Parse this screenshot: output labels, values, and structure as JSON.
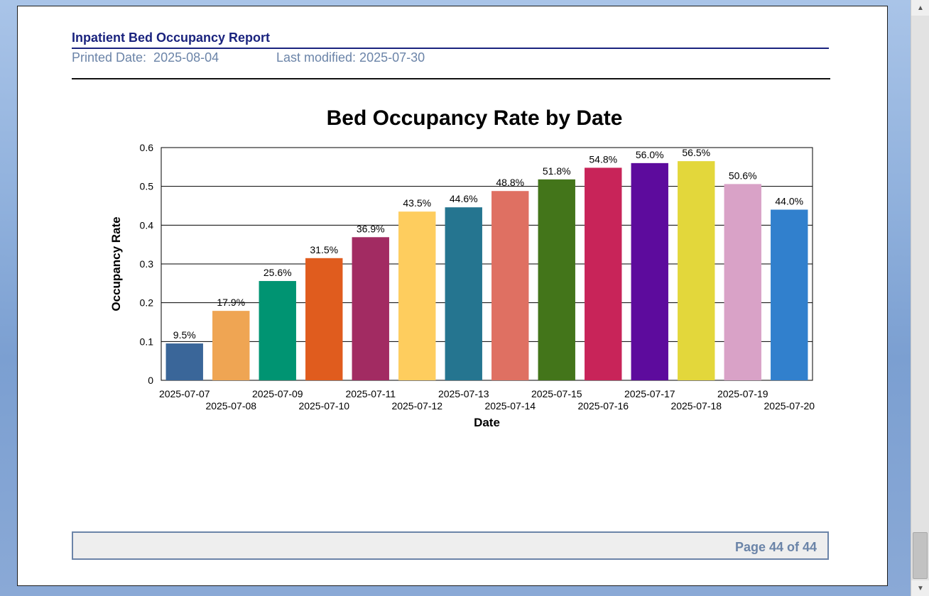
{
  "report": {
    "title": "Inpatient Bed Occupancy Report",
    "printed_label": "Printed Date:  2025-08-04",
    "modified_label": "Last modified: 2025-07-30",
    "page_label": "Page 44 of 44"
  },
  "chart_data": {
    "type": "bar",
    "title": "Bed Occupancy Rate by Date",
    "xlabel": "Date",
    "ylabel": "Occupancy Rate",
    "ylim": [
      0,
      0.6
    ],
    "yticks": [
      "0",
      "0.1",
      "0.2",
      "0.3",
      "0.4",
      "0.5",
      "0.6"
    ],
    "grid": "horizontal",
    "categories": [
      "2025-07-07",
      "2025-07-08",
      "2025-07-09",
      "2025-07-10",
      "2025-07-11",
      "2025-07-12",
      "2025-07-13",
      "2025-07-14",
      "2025-07-15",
      "2025-07-16",
      "2025-07-17",
      "2025-07-18",
      "2025-07-19",
      "2025-07-20"
    ],
    "values": [
      0.095,
      0.179,
      0.256,
      0.315,
      0.369,
      0.435,
      0.446,
      0.488,
      0.518,
      0.548,
      0.56,
      0.565,
      0.506,
      0.44
    ],
    "data_labels": [
      "9.5%",
      "17.9%",
      "25.6%",
      "31.5%",
      "36.9%",
      "43.5%",
      "44.6%",
      "48.8%",
      "51.8%",
      "54.8%",
      "56.0%",
      "56.5%",
      "50.6%",
      "44.0%"
    ],
    "colors": [
      "#3a6699",
      "#efa553",
      "#009472",
      "#e05c1e",
      "#a22b62",
      "#fecd5e",
      "#257590",
      "#df7062",
      "#43751a",
      "#c82459",
      "#5d0b9d",
      "#e3d73b",
      "#d9a2c7",
      "#3180cd"
    ]
  }
}
